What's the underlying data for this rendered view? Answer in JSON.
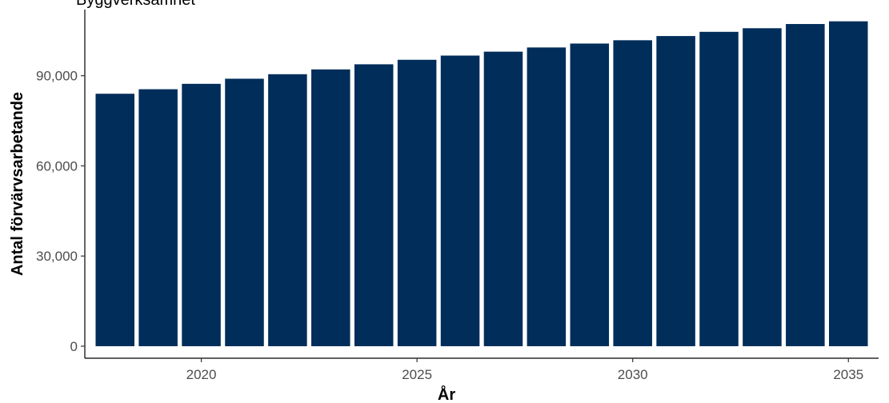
{
  "chart_data": {
    "type": "bar",
    "title": "Byggverksamhet",
    "xlabel": "År",
    "ylabel": "Antal förvärvsarbetande",
    "x": [
      2018,
      2019,
      2020,
      2021,
      2022,
      2023,
      2024,
      2025,
      2026,
      2027,
      2028,
      2029,
      2030,
      2031,
      2032,
      2033,
      2034,
      2035
    ],
    "values": [
      84000,
      85500,
      87300,
      89000,
      90500,
      92100,
      93800,
      95300,
      96700,
      98000,
      99400,
      100700,
      101800,
      103200,
      104600,
      105800,
      107200,
      108100
    ],
    "xticks": [
      2020,
      2025,
      2030,
      2035
    ],
    "xtick_labels": [
      "2020",
      "2025",
      "2030",
      "2035"
    ],
    "yticks": [
      0,
      30000,
      60000,
      90000
    ],
    "ytick_labels": [
      "0",
      "30,000",
      "60,000",
      "90,000"
    ],
    "xlim": [
      2017.3,
      2035.7
    ],
    "ylim": [
      -4000,
      112000
    ],
    "bar_color": "#002d5a",
    "grid": false,
    "legend": "none"
  }
}
